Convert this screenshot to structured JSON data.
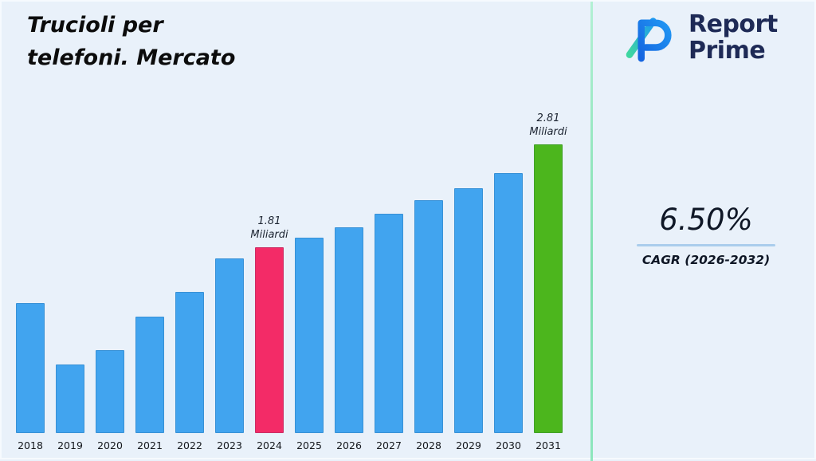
{
  "title": {
    "line1": "Trucioli per",
    "line2": "telefoni. Mercato"
  },
  "logo": {
    "name": "Report Prime",
    "line1": "Report",
    "line2": "Prime"
  },
  "stats": {
    "value": "6.50%",
    "caption": "CAGR (2026-2032)"
  },
  "colors": {
    "background": "#e9f1fa",
    "bar_blue": "#41a4ef",
    "bar_pink": "#f32b67",
    "bar_green": "#4cb61d",
    "navy_text": "#1e2a56",
    "divider_green": "#7fdfae",
    "stat_line_blue": "#aacdec"
  },
  "chart_data": {
    "type": "bar",
    "title": "Trucioli per telefoni. Mercato",
    "xlabel": "",
    "ylabel": "Miliardi",
    "unit": "Miliardi",
    "ylim": [
      0,
      3
    ],
    "grid": false,
    "legend": "none",
    "categories": [
      "2018",
      "2019",
      "2020",
      "2021",
      "2022",
      "2023",
      "2024",
      "2025",
      "2026",
      "2027",
      "2028",
      "2029",
      "2030",
      "2031"
    ],
    "values": [
      1.26,
      0.67,
      0.81,
      1.13,
      1.37,
      1.7,
      1.81,
      1.9,
      2.0,
      2.13,
      2.26,
      2.38,
      2.53,
      2.81
    ],
    "bar_color": "#41a4ef",
    "highlights": [
      {
        "category": "2024",
        "color": "#f32b67",
        "annotation_lines": [
          "1.81",
          "Miliardi"
        ]
      },
      {
        "category": "2031",
        "color": "#4cb61d",
        "annotation_lines": [
          "2.81",
          "Miliardi"
        ]
      }
    ]
  }
}
